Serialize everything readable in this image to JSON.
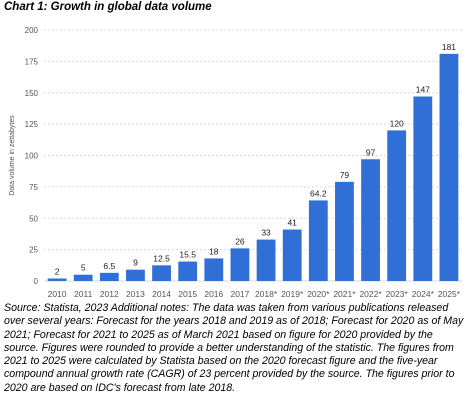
{
  "title": "Chart 1: Growth in global data volume",
  "source_note": "Source: Statista, 2023 Additional notes: The data was taken from various publications released over several years: Forecast for the years 2018 and 2019 as of 2018; Forecast for 2020 as of May 2021; Forecast for 2021 to 2025 as of March 2021 based on figure for 2020 provided by the source. Figures were rounded to provide a better understanding of the statistic. The figures from 2021 to 2025 were calculated by Statista based on the 2020 forecast figure and the five-year compound annual growth rate (CAGR) of 23 percent provided by the source. The figures prior to 2020 are based on IDC's forecast from late 2018.",
  "colors": {
    "bar": "#2f6fd6",
    "grid": "#d9d9d9",
    "tick": "#555555"
  },
  "chart_data": {
    "type": "bar",
    "categories": [
      "2010",
      "2011",
      "2012",
      "2013",
      "2014",
      "2015",
      "2016",
      "2017",
      "2018*",
      "2019*",
      "2020*",
      "2021*",
      "2022*",
      "2023*",
      "2024*",
      "2025*"
    ],
    "values": [
      2,
      5,
      6.5,
      9,
      12.5,
      15.5,
      18,
      26,
      33,
      41,
      64.2,
      79,
      97,
      120,
      147,
      181
    ],
    "value_labels": [
      "2",
      "5",
      "6.5",
      "9",
      "12.5",
      "15.5",
      "18",
      "26",
      "33",
      "41",
      "64.2",
      "79",
      "97",
      "120",
      "147",
      "181"
    ],
    "ylabel": "Data volume in zettabytes",
    "ylim": [
      0,
      200
    ],
    "yticks": [
      0,
      25,
      50,
      75,
      100,
      125,
      150,
      175,
      200
    ],
    "grid": true,
    "legend": "none"
  }
}
